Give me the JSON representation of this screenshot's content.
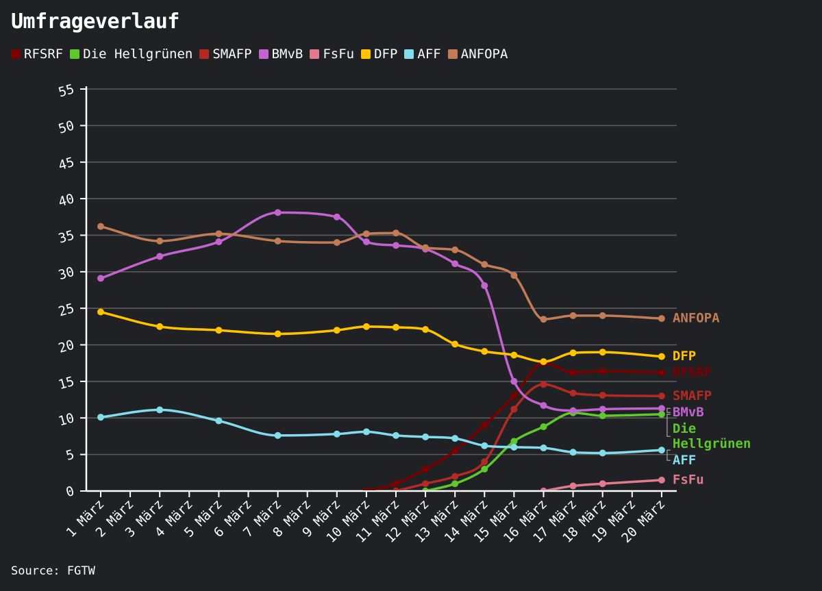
{
  "title": "Umfrageverlauf",
  "source": "Source: FGTW",
  "chart_data": {
    "type": "line",
    "title": "Umfrageverlauf",
    "xlabel": "",
    "ylabel": "",
    "ylim": [
      0,
      55
    ],
    "yticks": [
      "0",
      "5",
      "10",
      "15",
      "20",
      "25",
      "30",
      "35",
      "40",
      "45",
      "50",
      "55"
    ],
    "grid": true,
    "legend": "top-left",
    "categories": [
      "1 März",
      "2 März",
      "3 März",
      "4 März",
      "5 März",
      "6 März",
      "7 März",
      "8 März",
      "9 März",
      "10 März",
      "11 März",
      "12 März",
      "13 März",
      "14 März",
      "15 März",
      "16 März",
      "17 März",
      "18 März",
      "19 März",
      "20 März"
    ],
    "series": [
      {
        "name": "RFSRF",
        "color": "#7a0000",
        "label": "RFSRF",
        "values": [
          null,
          null,
          null,
          null,
          null,
          null,
          null,
          null,
          null,
          0,
          1,
          3,
          5.5,
          9,
          13,
          17.5,
          16.2,
          16.4,
          null,
          16.2
        ]
      },
      {
        "name": "Die Hellgrünen",
        "color": "#5ec82e",
        "label": "Die\nHellgrünen",
        "values": [
          null,
          null,
          null,
          null,
          null,
          null,
          null,
          null,
          null,
          null,
          null,
          0,
          1,
          3,
          6.8,
          8.8,
          10.7,
          10.3,
          null,
          10.5
        ]
      },
      {
        "name": "SMAFP",
        "color": "#b32a22",
        "label": "SMAFP",
        "values": [
          null,
          null,
          null,
          null,
          null,
          null,
          null,
          null,
          null,
          null,
          0,
          1,
          2,
          4,
          11.2,
          14.6,
          13.4,
          13.1,
          null,
          13
        ]
      },
      {
        "name": "BMvB",
        "color": "#c264cf",
        "label": "BMvB",
        "values": [
          29.1,
          null,
          32.1,
          null,
          34.1,
          null,
          38.1,
          null,
          37.5,
          34.1,
          33.6,
          33.1,
          31.1,
          28.1,
          15,
          11.7,
          11,
          11.2,
          null,
          11.3
        ]
      },
      {
        "name": "FsFu",
        "color": "#e07b8d",
        "label": "FsFu",
        "values": [
          null,
          null,
          null,
          null,
          null,
          null,
          null,
          null,
          null,
          null,
          null,
          null,
          null,
          null,
          null,
          0,
          0.7,
          1,
          null,
          1.5
        ]
      },
      {
        "name": "DFP",
        "color": "#ffc300",
        "label": "DFP",
        "values": [
          24.5,
          null,
          22.5,
          null,
          22,
          null,
          21.5,
          null,
          22,
          22.5,
          22.4,
          22.1,
          20.1,
          19.1,
          18.6,
          17.7,
          18.9,
          19,
          null,
          18.4
        ]
      },
      {
        "name": "AFF",
        "color": "#83dcec",
        "label": "AFF",
        "values": [
          10.1,
          null,
          11.1,
          null,
          9.6,
          null,
          7.6,
          null,
          7.8,
          8.1,
          7.6,
          7.4,
          7.2,
          6.2,
          6,
          5.9,
          5.3,
          5.2,
          null,
          5.6
        ]
      },
      {
        "name": "ANFOPA",
        "color": "#c27c56",
        "label": "ANFOPA",
        "values": [
          36.2,
          null,
          34.2,
          null,
          35.2,
          null,
          34.2,
          null,
          34,
          35.2,
          35.3,
          33.3,
          33,
          31,
          29.5,
          23.5,
          24,
          24,
          null,
          23.6
        ]
      }
    ]
  }
}
